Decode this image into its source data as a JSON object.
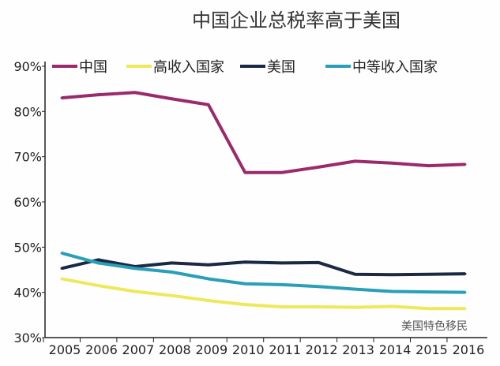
{
  "chart_data": {
    "type": "line",
    "title": "中国企业总税率高于美国",
    "xlabel": "",
    "ylabel": "",
    "categories": [
      "2005",
      "2006",
      "2007",
      "2008",
      "2009",
      "2010",
      "2011",
      "2012",
      "2013",
      "2014",
      "2015",
      "2016"
    ],
    "ylim": [
      30,
      90
    ],
    "yticks": [
      "30%",
      "40%",
      "50%",
      "60%",
      "70%",
      "80%",
      "90%"
    ],
    "grid": false,
    "legend_position": "top",
    "series": [
      {
        "name": "中国",
        "color": "#9b2a6c",
        "values": [
          83.0,
          83.7,
          84.2,
          82.8,
          81.5,
          66.5,
          66.5,
          67.7,
          69.0,
          68.6,
          68.0,
          68.3
        ]
      },
      {
        "name": "高收入国家",
        "color": "#eee85a",
        "values": [
          43.0,
          41.5,
          40.2,
          39.3,
          38.2,
          37.3,
          36.8,
          36.8,
          36.7,
          36.9,
          36.4,
          36.4
        ]
      },
      {
        "name": "美国",
        "color": "#1b2944",
        "values": [
          45.3,
          47.2,
          45.7,
          46.5,
          46.1,
          46.7,
          46.5,
          46.6,
          44.0,
          43.9,
          44.0,
          44.1
        ]
      },
      {
        "name": "中等收入国家",
        "color": "#2a9fb8",
        "values": [
          48.7,
          46.5,
          45.3,
          44.5,
          43.0,
          41.9,
          41.7,
          41.3,
          40.7,
          40.2,
          40.1,
          40.0
        ]
      }
    ]
  },
  "watermark": "美国特色移民"
}
